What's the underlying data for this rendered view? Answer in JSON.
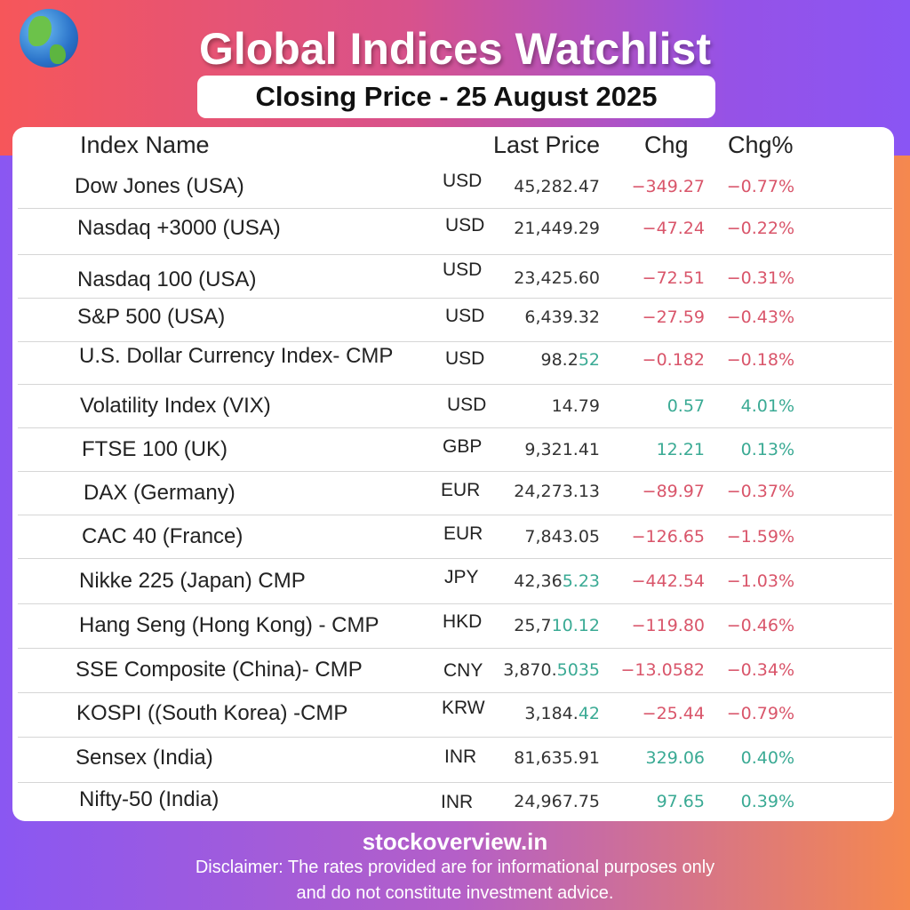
{
  "header": {
    "title": "Global Indices Watchlist",
    "subtitle": "Closing Price - 25 August 2025",
    "logo_icon": "globe-icon"
  },
  "colors": {
    "negative": "#d9556a",
    "positive": "#3aaa94"
  },
  "table": {
    "columns": [
      "Index Name",
      "Last Price",
      "Chg",
      "Chg%"
    ],
    "rows": [
      {
        "name": "Dow Jones (USA)",
        "currency": "USD",
        "price": "45,282.47",
        "price_hl": "",
        "chg": "−349.27",
        "pct": "−0.77%",
        "dir": "neg"
      },
      {
        "name": "Nasdaq +3000 (USA)",
        "currency": "USD",
        "price": "21,449.29",
        "price_hl": "",
        "chg": "−47.24",
        "pct": "−0.22%",
        "dir": "neg"
      },
      {
        "name": "Nasdaq 100 (USA)",
        "currency": "USD",
        "price": "23,425.60",
        "price_hl": "",
        "chg": "−72.51",
        "pct": "−0.31%",
        "dir": "neg"
      },
      {
        "name": "S&P 500 (USA)",
        "currency": "USD",
        "price": "6,439.32",
        "price_hl": "",
        "chg": "−27.59",
        "pct": "−0.43%",
        "dir": "neg"
      },
      {
        "name": "U.S. Dollar Currency Index- CMP",
        "currency": "USD",
        "price": "98.2",
        "price_hl": "52",
        "chg": "−0.182",
        "pct": "−0.18%",
        "dir": "neg"
      },
      {
        "name": "Volatility Index (VIX)",
        "currency": "USD",
        "price": "14.79",
        "price_hl": "",
        "chg": "0.57",
        "pct": "4.01%",
        "dir": "pos"
      },
      {
        "name": "FTSE 100 (UK)",
        "currency": "GBP",
        "price": "9,321.41",
        "price_hl": "",
        "chg": "12.21",
        "pct": "0.13%",
        "dir": "pos"
      },
      {
        "name": "DAX (Germany)",
        "currency": "EUR",
        "price": "24,273.13",
        "price_hl": "",
        "chg": "−89.97",
        "pct": "−0.37%",
        "dir": "neg"
      },
      {
        "name": "CAC 40 (France)",
        "currency": "EUR",
        "price": "7,843.05",
        "price_hl": "",
        "chg": "−126.65",
        "pct": "−1.59%",
        "dir": "neg"
      },
      {
        "name": "Nikke 225 (Japan) CMP",
        "currency": "JPY",
        "price": "42,36",
        "price_hl": "5.23",
        "chg": "−442.54",
        "pct": "−1.03%",
        "dir": "neg"
      },
      {
        "name": "Hang Seng (Hong Kong) - CMP",
        "currency": "HKD",
        "price": "25,7",
        "price_hl": "10.12",
        "chg": "−119.80",
        "pct": "−0.46%",
        "dir": "neg"
      },
      {
        "name": "SSE Composite (China)- CMP",
        "currency": "CNY",
        "price": "3,870.",
        "price_hl": "5035",
        "chg": "−13.0582",
        "pct": "−0.34%",
        "dir": "neg"
      },
      {
        "name": "KOSPI ((South Korea) -CMP",
        "currency": "KRW",
        "price": "3,184.",
        "price_hl": "42",
        "chg": "−25.44",
        "pct": "−0.79%",
        "dir": "neg"
      },
      {
        "name": "Sensex (India)",
        "currency": "INR",
        "price": "81,635.91",
        "price_hl": "",
        "chg": "329.06",
        "pct": "0.40%",
        "dir": "pos"
      },
      {
        "name": "Nifty-50 (India)",
        "currency": "INR",
        "price": "24,967.75",
        "price_hl": "",
        "chg": "97.65",
        "pct": "0.39%",
        "dir": "pos"
      }
    ]
  },
  "footer": {
    "site": "stockoverview.in",
    "disclaimer_1": "Disclaimer: The rates provided are for informational purposes only",
    "disclaimer_2": "and do not constitute investment advice."
  }
}
